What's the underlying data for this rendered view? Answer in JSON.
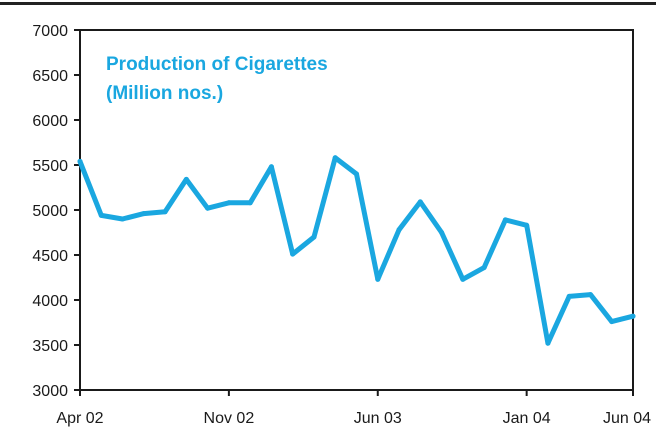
{
  "chart_data": {
    "type": "line",
    "title": "Production of Cigarettes",
    "subtitle": "(Million nos.)",
    "xlabel": "",
    "ylabel": "",
    "ylim": [
      3000,
      7000
    ],
    "yticks": [
      3000,
      3500,
      4000,
      4500,
      5000,
      5500,
      6000,
      6500,
      7000
    ],
    "x_tick_labels": [
      "Apr 02",
      "Nov 02",
      "Jun 03",
      "Jan 04",
      "Jun 04"
    ],
    "x_tick_months": [
      "2002-04",
      "2002-11",
      "2003-06",
      "2004-01",
      "2004-06"
    ],
    "grid": false,
    "line_color": "#1aa7e0",
    "x": [
      "2002-04",
      "2002-05",
      "2002-06",
      "2002-07",
      "2002-08",
      "2002-09",
      "2002-10",
      "2002-11",
      "2002-12",
      "2003-01",
      "2003-02",
      "2003-03",
      "2003-04",
      "2003-05",
      "2003-06",
      "2003-07",
      "2003-08",
      "2003-09",
      "2003-10",
      "2003-11",
      "2003-12",
      "2004-01",
      "2004-02",
      "2004-03",
      "2004-04",
      "2004-05",
      "2004-06"
    ],
    "values": [
      5540,
      4940,
      4900,
      4960,
      4980,
      5340,
      5020,
      5080,
      5080,
      5480,
      4510,
      4700,
      5580,
      5400,
      4230,
      4780,
      5090,
      4750,
      4230,
      4360,
      4890,
      4830,
      3520,
      4040,
      4060,
      3760,
      3820
    ]
  }
}
